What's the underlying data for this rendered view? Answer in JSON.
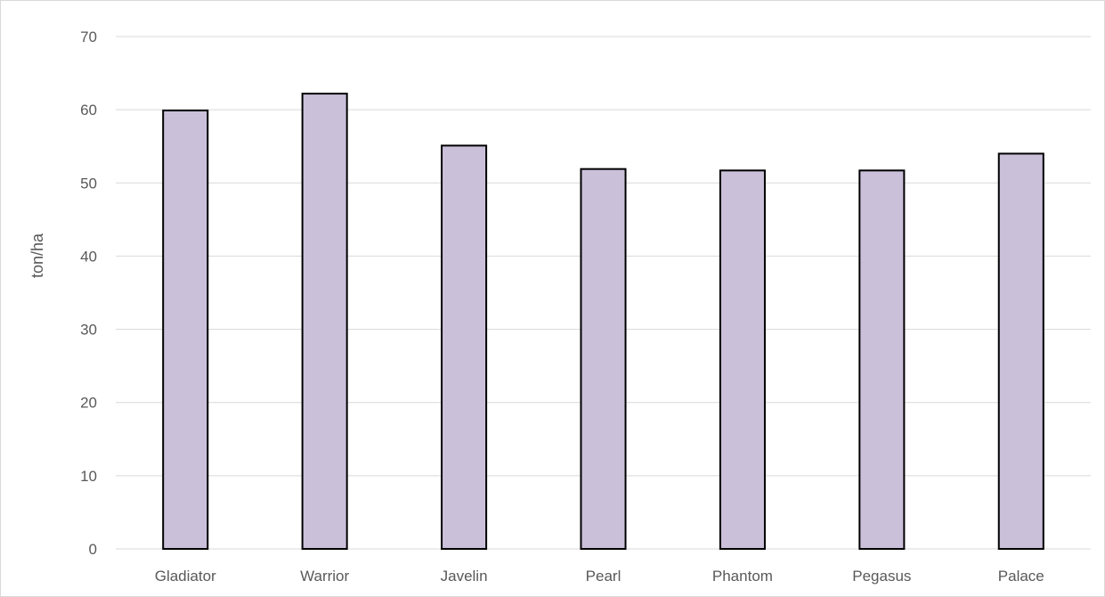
{
  "chart_data": {
    "type": "bar",
    "categories": [
      "Gladiator",
      "Warrior",
      "Javelin",
      "Pearl",
      "Phantom",
      "Pegasus",
      "Palace"
    ],
    "values": [
      59.9,
      62.2,
      55.1,
      51.9,
      51.7,
      51.7,
      54.0
    ],
    "ylabel": "ton/ha",
    "ylim": [
      0,
      70
    ],
    "yticks": [
      0,
      10,
      20,
      30,
      40,
      50,
      60,
      70
    ],
    "grid": true,
    "colors": {
      "bar_fill": "#cbc0da",
      "bar_stroke": "#000000",
      "grid": "#d9d9d9",
      "text": "#595959"
    }
  }
}
